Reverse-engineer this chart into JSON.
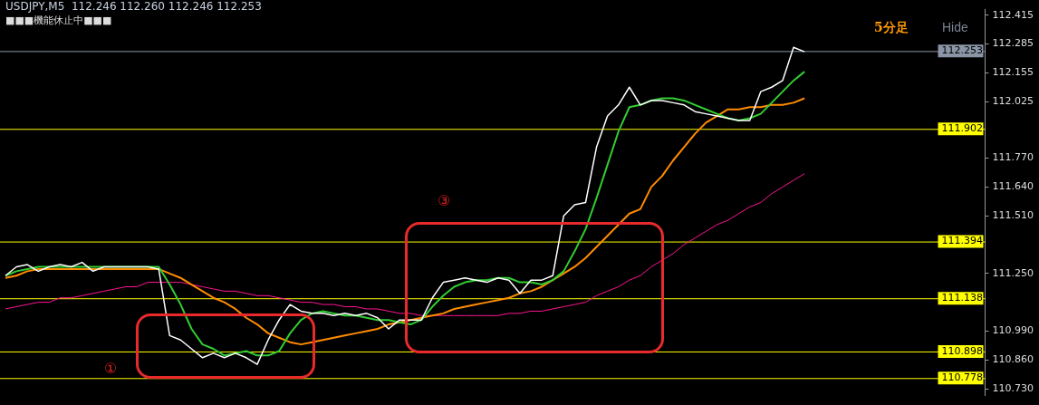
{
  "chart_data": {
    "type": "line",
    "title": "USDJPY,M5  112.246 112.260 112.246 112.253",
    "subtitle": "■■■機能休止中■■■",
    "categories": [
      null,
      null,
      null,
      null,
      null,
      null,
      null,
      null,
      null,
      null,
      null,
      null,
      null,
      null,
      null,
      null,
      null,
      null,
      null,
      null,
      null,
      null,
      null,
      null,
      null,
      null,
      null,
      null,
      null,
      null,
      null,
      null,
      null,
      null,
      null,
      null,
      null,
      null,
      null,
      null,
      null,
      null,
      null,
      null,
      null,
      null,
      null,
      null,
      null,
      null,
      null,
      null,
      null,
      null,
      null,
      null,
      null,
      null,
      null,
      null,
      null,
      null,
      null,
      null,
      null,
      null,
      null,
      null,
      null,
      null,
      null,
      null,
      null,
      null,
      null,
      null,
      null,
      null,
      null,
      null,
      null,
      null,
      null,
      null,
      null,
      null,
      null,
      null,
      null,
      null
    ],
    "series": [
      {
        "type": "line",
        "color": "#ffffff",
        "values": [
          111.24,
          111.28,
          111.29,
          111.26,
          111.28,
          111.29,
          111.28,
          111.3,
          111.26,
          111.28,
          111.28,
          111.28,
          111.28,
          111.28,
          111.27,
          110.97,
          110.95,
          110.91,
          110.87,
          110.89,
          110.87,
          110.89,
          110.87,
          110.84,
          110.95,
          111.04,
          111.11,
          111.08,
          111.07,
          111.07,
          111.06,
          111.07,
          111.06,
          111.07,
          111.05,
          111.0,
          111.04,
          111.04,
          111.04,
          111.14,
          111.21,
          111.22,
          111.23,
          111.22,
          111.21,
          111.23,
          111.22,
          111.16,
          111.22,
          111.22,
          111.24,
          111.51,
          111.56,
          111.57,
          111.82,
          111.96,
          112.01,
          112.09,
          112.01,
          112.03,
          112.03,
          112.02,
          112.01,
          111.98,
          111.97,
          111.96,
          111.95,
          111.94,
          111.94,
          112.07,
          112.09,
          112.12,
          112.27,
          112.25,
          null,
          null,
          null,
          null,
          null,
          null,
          null,
          null,
          null,
          null,
          null,
          null,
          null,
          null,
          null,
          null
        ]
      },
      {
        "type": "line",
        "color": "#32cd32",
        "values": [
          111.24,
          111.26,
          111.27,
          111.28,
          111.28,
          111.28,
          111.28,
          111.28,
          111.28,
          111.28,
          111.28,
          111.28,
          111.28,
          111.28,
          111.28,
          111.2,
          111.11,
          111.0,
          110.93,
          110.91,
          110.88,
          110.89,
          110.9,
          110.88,
          110.88,
          110.9,
          110.98,
          111.04,
          111.07,
          111.08,
          111.07,
          111.06,
          111.06,
          111.05,
          111.04,
          111.04,
          111.03,
          111.02,
          111.04,
          111.1,
          111.15,
          111.19,
          111.21,
          111.22,
          111.22,
          111.23,
          111.23,
          111.21,
          111.21,
          111.2,
          111.22,
          111.26,
          111.35,
          111.45,
          111.59,
          111.74,
          111.89,
          112.0,
          112.01,
          112.03,
          112.04,
          112.04,
          112.03,
          112.01,
          111.99,
          111.97,
          111.95,
          111.94,
          111.95,
          111.97,
          112.02,
          112.07,
          112.12,
          112.16,
          null,
          null,
          null,
          null,
          null,
          null,
          null,
          null,
          null,
          null,
          null,
          null,
          null,
          null,
          null,
          null
        ]
      },
      {
        "type": "line",
        "color": "#ff8c00",
        "values": [
          111.23,
          111.24,
          111.26,
          111.27,
          111.27,
          111.27,
          111.27,
          111.27,
          111.27,
          111.27,
          111.27,
          111.27,
          111.27,
          111.27,
          111.27,
          111.25,
          111.23,
          111.2,
          111.17,
          111.14,
          111.12,
          111.09,
          111.05,
          111.02,
          110.98,
          110.96,
          110.94,
          110.93,
          110.94,
          110.95,
          110.96,
          110.97,
          110.98,
          110.99,
          111.0,
          111.02,
          111.03,
          111.04,
          111.05,
          111.06,
          111.07,
          111.09,
          111.1,
          111.11,
          111.12,
          111.13,
          111.14,
          111.16,
          111.17,
          111.19,
          111.22,
          111.25,
          111.28,
          111.32,
          111.37,
          111.42,
          111.47,
          111.52,
          111.54,
          111.64,
          111.69,
          111.76,
          111.82,
          111.88,
          111.93,
          111.96,
          111.99,
          111.99,
          112.0,
          112.0,
          112.01,
          112.01,
          112.02,
          112.04,
          null,
          null,
          null,
          null,
          null,
          null,
          null,
          null,
          null,
          null,
          null,
          null,
          null,
          null,
          null,
          null
        ]
      },
      {
        "type": "line",
        "color": "#ff1493",
        "values": [
          111.09,
          111.1,
          111.11,
          111.12,
          111.12,
          111.14,
          111.14,
          111.15,
          111.16,
          111.17,
          111.18,
          111.19,
          111.19,
          111.21,
          111.21,
          111.21,
          111.21,
          111.2,
          111.19,
          111.18,
          111.17,
          111.17,
          111.16,
          111.15,
          111.15,
          111.14,
          111.13,
          111.12,
          111.12,
          111.11,
          111.11,
          111.1,
          111.1,
          111.09,
          111.09,
          111.08,
          111.07,
          111.07,
          111.06,
          111.06,
          111.06,
          111.06,
          111.06,
          111.06,
          111.06,
          111.06,
          111.07,
          111.07,
          111.08,
          111.08,
          111.09,
          111.1,
          111.11,
          111.12,
          111.15,
          111.17,
          111.19,
          111.22,
          111.24,
          111.28,
          111.31,
          111.34,
          111.38,
          111.41,
          111.44,
          111.47,
          111.49,
          111.52,
          111.55,
          111.57,
          111.61,
          111.64,
          111.67,
          111.7,
          null,
          null,
          null,
          null,
          null,
          null,
          null,
          null,
          null,
          null,
          null,
          null,
          null,
          null,
          null,
          null
        ]
      }
    ],
    "ylim": [
      110.7,
      112.44
    ],
    "yticks": [
      112.415,
      112.285,
      112.155,
      112.025,
      {
        "value": 111.77,
        "label": "111.770"
      },
      {
        "value": 111.64,
        "label": "111.640"
      },
      {
        "value": 111.51,
        "label": "111.510"
      },
      {
        "value": 111.25,
        "label": "111.250"
      },
      {
        "value": 110.99,
        "label": "110.990"
      },
      {
        "value": 110.86,
        "label": "110.860"
      },
      {
        "value": 110.73,
        "label": "110.730"
      }
    ],
    "ref_lines": [
      {
        "axis": "y",
        "value": 112.253,
        "label": "112.253",
        "color": "#8a96a6"
      },
      {
        "axis": "y",
        "value": 111.902,
        "label": "111.902",
        "color": "#ffff00"
      },
      {
        "axis": "y",
        "value": 111.394,
        "label": "111.394",
        "color": "#ffff00"
      },
      {
        "axis": "y",
        "value": 111.138,
        "label": "111.138",
        "color": "#ffff00"
      },
      {
        "axis": "y",
        "value": 110.898,
        "label": "110.898",
        "color": "#ffff00"
      },
      {
        "axis": "y",
        "value": 110.778,
        "label": "110.778",
        "color": "#ffff00"
      }
    ],
    "annotations": [
      "①",
      "③",
      "5分足",
      "Hide"
    ],
    "tick_labels": "y",
    "grid": false,
    "legend": false,
    "marker": "none",
    "line_style": "solid"
  }
}
